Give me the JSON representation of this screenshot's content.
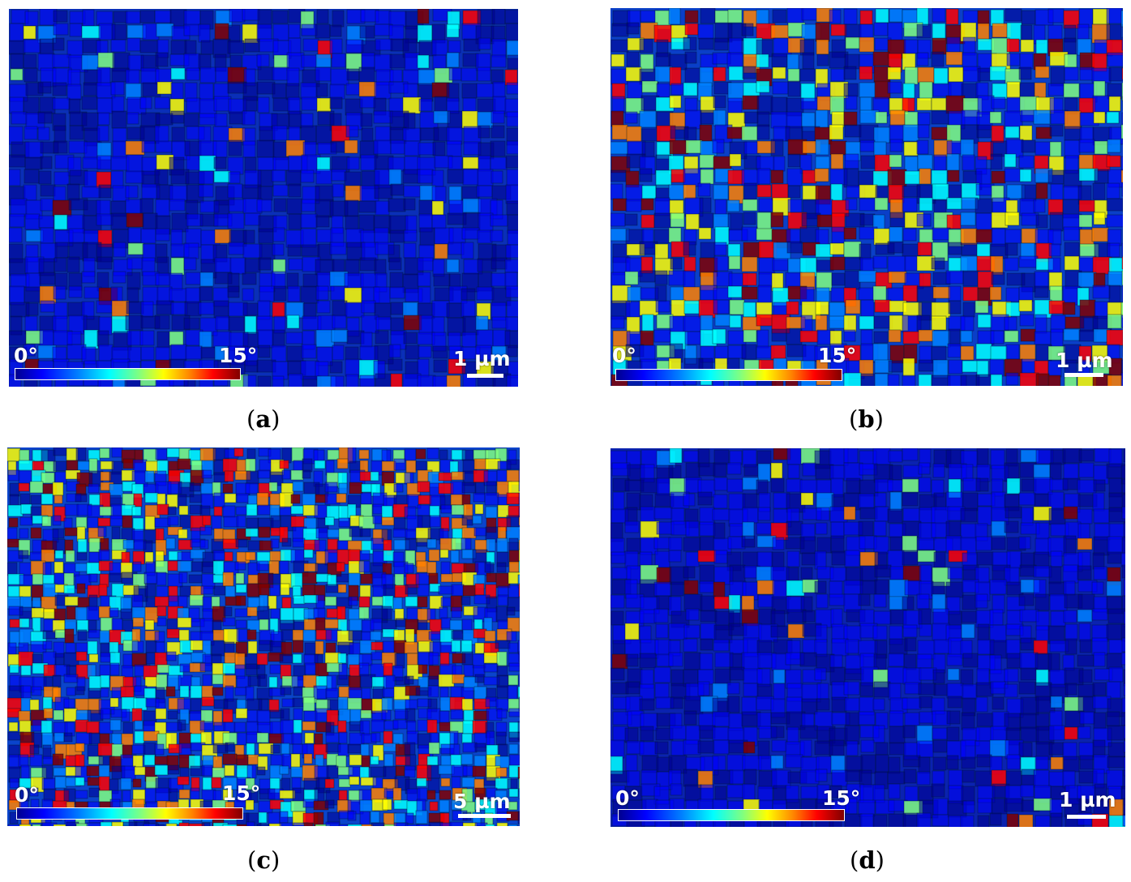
{
  "panels": [
    {
      "id": "a",
      "caption_letter": "a",
      "cbar_min": "0°",
      "cbar_max": "15°",
      "scale_label": "1 µm",
      "base_color": "#0a2fb8",
      "level": 0.12
    },
    {
      "id": "b",
      "caption_letter": "b",
      "cbar_min": "0°",
      "cbar_max": "15°",
      "scale_label": "1 µm",
      "base_color": "#0a3fc8",
      "level": 0.55
    },
    {
      "id": "c",
      "caption_letter": "c",
      "cbar_min": "0°",
      "cbar_max": "15°",
      "scale_label": "5 µm",
      "base_color": "#0a44cc",
      "level": 0.6
    },
    {
      "id": "d",
      "caption_letter": "d",
      "cbar_min": "0°",
      "cbar_max": "15°",
      "scale_label": "1 µm",
      "base_color": "#0a22b0",
      "level": 0.08
    }
  ],
  "colormap": [
    "#00008f",
    "#0000ff",
    "#0080ff",
    "#00ffff",
    "#80ff80",
    "#ffff00",
    "#ff8000",
    "#ff0000",
    "#800000"
  ]
}
